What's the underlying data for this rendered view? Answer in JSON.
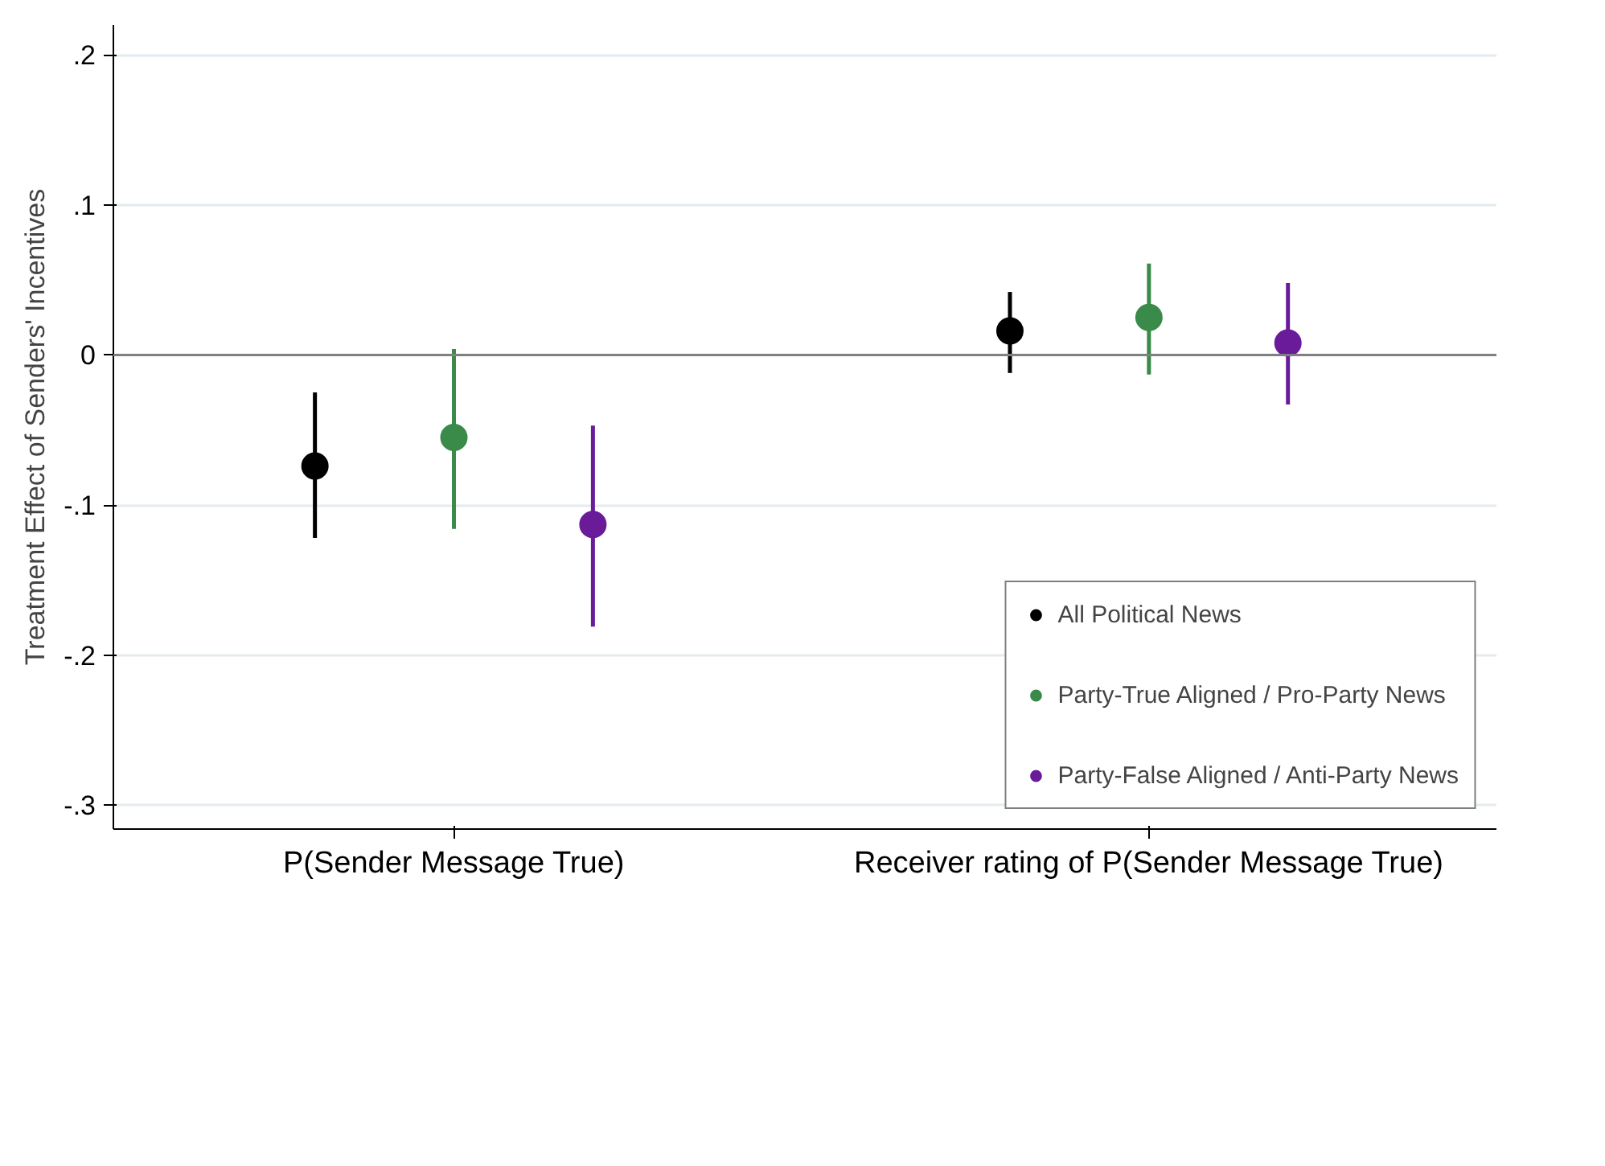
{
  "chart_data": {
    "type": "scatter",
    "ylabel": "Treatment Effect of Senders' Incentives",
    "categories": [
      "P(Sender Message True)",
      "Receiver rating of P(Sender Message True)"
    ],
    "series": [
      {
        "name": "All Political News",
        "color": "#000000",
        "values": [
          -0.074,
          0.016
        ],
        "errors": [
          [
            -0.122,
            -0.025
          ],
          [
            -0.012,
            0.042
          ]
        ]
      },
      {
        "name": "Party-True Aligned / Pro-Party News",
        "color": "#3a8a4a",
        "values": [
          -0.055,
          0.025
        ],
        "errors": [
          [
            -0.116,
            0.004
          ],
          [
            -0.013,
            0.061
          ]
        ]
      },
      {
        "name": "Party-False Aligned / Anti-Party News",
        "color": "#6a1b9a",
        "values": [
          -0.113,
          0.008
        ],
        "errors": [
          [
            -0.181,
            -0.047
          ],
          [
            -0.033,
            0.048
          ]
        ]
      }
    ],
    "ylim": [
      -0.316,
      0.22
    ],
    "yticks": [
      {
        "value": -0.3,
        "label": "-.3"
      },
      {
        "value": -0.2,
        "label": "-.2"
      },
      {
        "value": -0.1,
        "label": "-.1"
      },
      0,
      {
        "value": 0.1,
        "label": ".1"
      },
      {
        "value": 0.2,
        "label": ".2"
      }
    ],
    "ref_lines": [
      {
        "axis": "y",
        "value": 0,
        "color": "#808080"
      }
    ],
    "grid": "y",
    "marker": "circle",
    "legend": "bottom right"
  }
}
